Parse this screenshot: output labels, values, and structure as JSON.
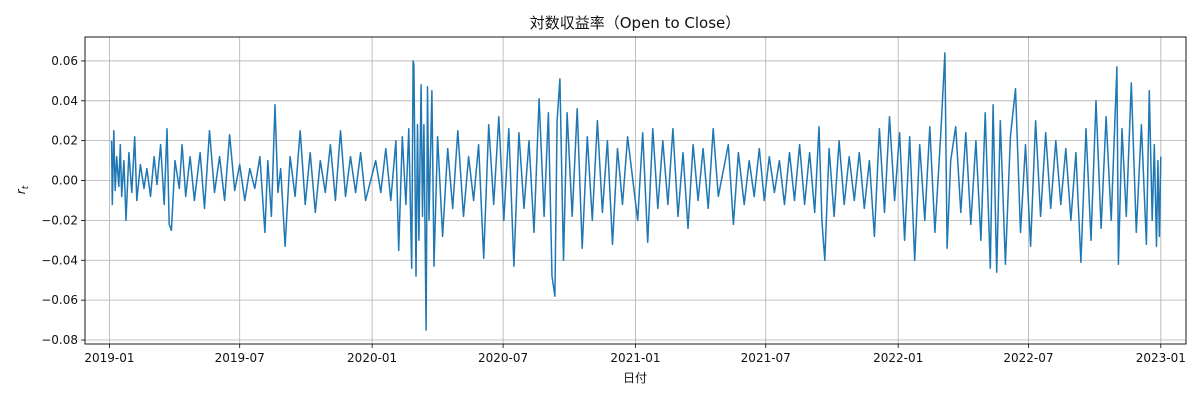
{
  "chart_data": {
    "type": "line",
    "title": "対数収益率（Open to Close）",
    "xlabel": "日付",
    "ylabel_main": "r",
    "ylabel_sub": "t",
    "xlim": [
      "2018-11-28",
      "2023-02-05"
    ],
    "ylim": [
      -0.082,
      0.072
    ],
    "x_ticks": [
      {
        "date": "2019-01-01",
        "label": "2019-01"
      },
      {
        "date": "2019-07-01",
        "label": "2019-07"
      },
      {
        "date": "2020-01-01",
        "label": "2020-01"
      },
      {
        "date": "2020-07-01",
        "label": "2020-07"
      },
      {
        "date": "2021-01-01",
        "label": "2021-01"
      },
      {
        "date": "2021-07-01",
        "label": "2021-07"
      },
      {
        "date": "2022-01-01",
        "label": "2022-01"
      },
      {
        "date": "2022-07-01",
        "label": "2022-07"
      },
      {
        "date": "2023-01-01",
        "label": "2023-01"
      }
    ],
    "y_ticks": [
      {
        "value": -0.08,
        "label": "−0.08"
      },
      {
        "value": -0.06,
        "label": "−0.06"
      },
      {
        "value": -0.04,
        "label": "−0.04"
      },
      {
        "value": -0.02,
        "label": "−0.02"
      },
      {
        "value": 0.0,
        "label": "0.00"
      },
      {
        "value": 0.02,
        "label": "0.02"
      },
      {
        "value": 0.04,
        "label": "0.04"
      },
      {
        "value": 0.06,
        "label": "0.06"
      }
    ],
    "grid": true,
    "series": [
      {
        "color": "#1f77b4",
        "points": [
          [
            "2019-01-04",
            0.02
          ],
          [
            "2019-01-05",
            -0.012
          ],
          [
            "2019-01-07",
            0.025
          ],
          [
            "2019-01-09",
            -0.005
          ],
          [
            "2019-01-11",
            0.012
          ],
          [
            "2019-01-14",
            -0.003
          ],
          [
            "2019-01-16",
            0.018
          ],
          [
            "2019-01-18",
            -0.008
          ],
          [
            "2019-01-21",
            0.01
          ],
          [
            "2019-01-24",
            -0.02
          ],
          [
            "2019-01-28",
            0.014
          ],
          [
            "2019-02-01",
            -0.006
          ],
          [
            "2019-02-05",
            0.022
          ],
          [
            "2019-02-08",
            -0.01
          ],
          [
            "2019-02-13",
            0.008
          ],
          [
            "2019-02-18",
            -0.004
          ],
          [
            "2019-02-22",
            0.006
          ],
          [
            "2019-02-27",
            -0.008
          ],
          [
            "2019-03-04",
            0.012
          ],
          [
            "2019-03-08",
            -0.002
          ],
          [
            "2019-03-13",
            0.018
          ],
          [
            "2019-03-18",
            -0.012
          ],
          [
            "2019-03-22",
            0.026
          ],
          [
            "2019-03-25",
            -0.022
          ],
          [
            "2019-03-28",
            -0.025
          ],
          [
            "2019-04-02",
            0.01
          ],
          [
            "2019-04-08",
            -0.004
          ],
          [
            "2019-04-12",
            0.018
          ],
          [
            "2019-04-17",
            -0.008
          ],
          [
            "2019-04-23",
            0.012
          ],
          [
            "2019-04-29",
            -0.01
          ],
          [
            "2019-05-07",
            0.014
          ],
          [
            "2019-05-13",
            -0.014
          ],
          [
            "2019-05-20",
            0.025
          ],
          [
            "2019-05-27",
            -0.006
          ],
          [
            "2019-06-03",
            0.012
          ],
          [
            "2019-06-10",
            -0.01
          ],
          [
            "2019-06-17",
            0.023
          ],
          [
            "2019-06-24",
            -0.005
          ],
          [
            "2019-07-01",
            0.008
          ],
          [
            "2019-07-08",
            -0.01
          ],
          [
            "2019-07-15",
            0.006
          ],
          [
            "2019-07-22",
            -0.004
          ],
          [
            "2019-07-29",
            0.012
          ],
          [
            "2019-08-05",
            -0.026
          ],
          [
            "2019-08-09",
            0.01
          ],
          [
            "2019-08-14",
            -0.018
          ],
          [
            "2019-08-19",
            0.038
          ],
          [
            "2019-08-23",
            -0.006
          ],
          [
            "2019-08-27",
            0.006
          ],
          [
            "2019-09-02",
            -0.033
          ],
          [
            "2019-09-09",
            0.012
          ],
          [
            "2019-09-16",
            -0.008
          ],
          [
            "2019-09-23",
            0.025
          ],
          [
            "2019-09-30",
            -0.012
          ],
          [
            "2019-10-07",
            0.014
          ],
          [
            "2019-10-14",
            -0.016
          ],
          [
            "2019-10-21",
            0.01
          ],
          [
            "2019-10-28",
            -0.006
          ],
          [
            "2019-11-04",
            0.018
          ],
          [
            "2019-11-11",
            -0.01
          ],
          [
            "2019-11-18",
            0.025
          ],
          [
            "2019-11-25",
            -0.008
          ],
          [
            "2019-12-02",
            0.012
          ],
          [
            "2019-12-09",
            -0.006
          ],
          [
            "2019-12-16",
            0.014
          ],
          [
            "2019-12-23",
            -0.01
          ],
          [
            "2020-01-06",
            0.01
          ],
          [
            "2020-01-13",
            -0.006
          ],
          [
            "2020-01-20",
            0.016
          ],
          [
            "2020-01-27",
            -0.01
          ],
          [
            "2020-02-03",
            0.02
          ],
          [
            "2020-02-07",
            -0.035
          ],
          [
            "2020-02-12",
            0.022
          ],
          [
            "2020-02-17",
            -0.012
          ],
          [
            "2020-02-21",
            0.026
          ],
          [
            "2020-02-25",
            -0.044
          ],
          [
            "2020-02-27",
            0.06
          ],
          [
            "2020-02-28",
            0.058
          ],
          [
            "2020-03-02",
            -0.048
          ],
          [
            "2020-03-04",
            0.028
          ],
          [
            "2020-03-06",
            -0.03
          ],
          [
            "2020-03-09",
            0.048
          ],
          [
            "2020-03-11",
            -0.018
          ],
          [
            "2020-03-13",
            0.028
          ],
          [
            "2020-03-16",
            -0.075
          ],
          [
            "2020-03-18",
            0.047
          ],
          [
            "2020-03-20",
            -0.02
          ],
          [
            "2020-03-24",
            0.045
          ],
          [
            "2020-03-27",
            -0.043
          ],
          [
            "2020-04-01",
            0.022
          ],
          [
            "2020-04-08",
            -0.028
          ],
          [
            "2020-04-15",
            0.016
          ],
          [
            "2020-04-22",
            -0.014
          ],
          [
            "2020-04-29",
            0.025
          ],
          [
            "2020-05-07",
            -0.018
          ],
          [
            "2020-05-14",
            0.012
          ],
          [
            "2020-05-21",
            -0.01
          ],
          [
            "2020-05-28",
            0.018
          ],
          [
            "2020-06-04",
            -0.039
          ],
          [
            "2020-06-11",
            0.028
          ],
          [
            "2020-06-18",
            -0.012
          ],
          [
            "2020-06-25",
            0.032
          ],
          [
            "2020-07-02",
            -0.02
          ],
          [
            "2020-07-09",
            0.026
          ],
          [
            "2020-07-16",
            -0.043
          ],
          [
            "2020-07-23",
            0.024
          ],
          [
            "2020-07-30",
            -0.014
          ],
          [
            "2020-08-06",
            0.02
          ],
          [
            "2020-08-13",
            -0.026
          ],
          [
            "2020-08-20",
            0.041
          ],
          [
            "2020-08-27",
            -0.018
          ],
          [
            "2020-09-02",
            0.034
          ],
          [
            "2020-09-07",
            -0.048
          ],
          [
            "2020-09-11",
            -0.058
          ],
          [
            "2020-09-14",
            0.03
          ],
          [
            "2020-09-18",
            0.051
          ],
          [
            "2020-09-23",
            -0.04
          ],
          [
            "2020-09-28",
            0.034
          ],
          [
            "2020-10-05",
            -0.018
          ],
          [
            "2020-10-12",
            0.036
          ],
          [
            "2020-10-19",
            -0.034
          ],
          [
            "2020-10-26",
            0.022
          ],
          [
            "2020-11-02",
            -0.02
          ],
          [
            "2020-11-09",
            0.03
          ],
          [
            "2020-11-16",
            -0.016
          ],
          [
            "2020-11-23",
            0.02
          ],
          [
            "2020-11-30",
            -0.032
          ],
          [
            "2020-12-07",
            0.016
          ],
          [
            "2020-12-14",
            -0.012
          ],
          [
            "2020-12-21",
            0.022
          ],
          [
            "2021-01-04",
            -0.02
          ],
          [
            "2021-01-11",
            0.024
          ],
          [
            "2021-01-18",
            -0.031
          ],
          [
            "2021-01-25",
            0.026
          ],
          [
            "2021-02-01",
            -0.014
          ],
          [
            "2021-02-08",
            0.02
          ],
          [
            "2021-02-15",
            -0.012
          ],
          [
            "2021-02-22",
            0.026
          ],
          [
            "2021-03-01",
            -0.018
          ],
          [
            "2021-03-08",
            0.014
          ],
          [
            "2021-03-15",
            -0.024
          ],
          [
            "2021-03-22",
            0.018
          ],
          [
            "2021-03-29",
            -0.01
          ],
          [
            "2021-04-05",
            0.016
          ],
          [
            "2021-04-12",
            -0.014
          ],
          [
            "2021-04-19",
            0.026
          ],
          [
            "2021-04-26",
            -0.008
          ],
          [
            "2021-05-10",
            0.018
          ],
          [
            "2021-05-17",
            -0.022
          ],
          [
            "2021-05-24",
            0.014
          ],
          [
            "2021-06-01",
            -0.012
          ],
          [
            "2021-06-08",
            0.01
          ],
          [
            "2021-06-15",
            -0.008
          ],
          [
            "2021-06-22",
            0.016
          ],
          [
            "2021-06-29",
            -0.01
          ],
          [
            "2021-07-06",
            0.012
          ],
          [
            "2021-07-13",
            -0.006
          ],
          [
            "2021-07-20",
            0.01
          ],
          [
            "2021-07-27",
            -0.012
          ],
          [
            "2021-08-03",
            0.014
          ],
          [
            "2021-08-10",
            -0.01
          ],
          [
            "2021-08-17",
            0.018
          ],
          [
            "2021-08-24",
            -0.012
          ],
          [
            "2021-08-31",
            0.014
          ],
          [
            "2021-09-07",
            -0.016
          ],
          [
            "2021-09-13",
            0.027
          ],
          [
            "2021-09-17",
            -0.02
          ],
          [
            "2021-09-21",
            -0.04
          ],
          [
            "2021-09-27",
            0.016
          ],
          [
            "2021-10-04",
            -0.018
          ],
          [
            "2021-10-11",
            0.02
          ],
          [
            "2021-10-18",
            -0.012
          ],
          [
            "2021-10-25",
            0.012
          ],
          [
            "2021-11-01",
            -0.01
          ],
          [
            "2021-11-08",
            0.014
          ],
          [
            "2021-11-15",
            -0.014
          ],
          [
            "2021-11-22",
            0.01
          ],
          [
            "2021-11-29",
            -0.028
          ],
          [
            "2021-12-06",
            0.026
          ],
          [
            "2021-12-13",
            -0.016
          ],
          [
            "2021-12-20",
            0.032
          ],
          [
            "2021-12-27",
            -0.01
          ],
          [
            "2022-01-03",
            0.024
          ],
          [
            "2022-01-10",
            -0.03
          ],
          [
            "2022-01-17",
            0.022
          ],
          [
            "2022-01-24",
            -0.04
          ],
          [
            "2022-01-31",
            0.018
          ],
          [
            "2022-02-07",
            -0.02
          ],
          [
            "2022-02-14",
            0.027
          ],
          [
            "2022-02-21",
            -0.026
          ],
          [
            "2022-03-01",
            0.022
          ],
          [
            "2022-03-07",
            0.064
          ],
          [
            "2022-03-10",
            -0.034
          ],
          [
            "2022-03-15",
            0.01
          ],
          [
            "2022-03-22",
            0.027
          ],
          [
            "2022-03-29",
            -0.016
          ],
          [
            "2022-04-05",
            0.024
          ],
          [
            "2022-04-12",
            -0.022
          ],
          [
            "2022-04-19",
            0.02
          ],
          [
            "2022-04-26",
            -0.03
          ],
          [
            "2022-05-02",
            0.034
          ],
          [
            "2022-05-09",
            -0.044
          ],
          [
            "2022-05-13",
            0.038
          ],
          [
            "2022-05-18",
            -0.046
          ],
          [
            "2022-05-23",
            0.03
          ],
          [
            "2022-05-30",
            -0.042
          ],
          [
            "2022-06-06",
            0.022
          ],
          [
            "2022-06-13",
            0.046
          ],
          [
            "2022-06-20",
            -0.026
          ],
          [
            "2022-06-27",
            0.018
          ],
          [
            "2022-07-04",
            -0.033
          ],
          [
            "2022-07-11",
            0.03
          ],
          [
            "2022-07-18",
            -0.018
          ],
          [
            "2022-07-25",
            0.024
          ],
          [
            "2022-08-01",
            -0.014
          ],
          [
            "2022-08-08",
            0.02
          ],
          [
            "2022-08-15",
            -0.012
          ],
          [
            "2022-08-22",
            0.016
          ],
          [
            "2022-08-29",
            -0.02
          ],
          [
            "2022-09-05",
            0.014
          ],
          [
            "2022-09-12",
            -0.041
          ],
          [
            "2022-09-19",
            0.026
          ],
          [
            "2022-09-26",
            -0.03
          ],
          [
            "2022-10-03",
            0.04
          ],
          [
            "2022-10-10",
            -0.024
          ],
          [
            "2022-10-17",
            0.032
          ],
          [
            "2022-10-24",
            -0.02
          ],
          [
            "2022-11-01",
            0.057
          ],
          [
            "2022-11-03",
            -0.042
          ],
          [
            "2022-11-08",
            0.026
          ],
          [
            "2022-11-14",
            -0.018
          ],
          [
            "2022-11-21",
            0.049
          ],
          [
            "2022-11-28",
            -0.026
          ],
          [
            "2022-12-05",
            0.028
          ],
          [
            "2022-12-12",
            -0.032
          ],
          [
            "2022-12-16",
            0.045
          ],
          [
            "2022-12-20",
            -0.02
          ],
          [
            "2022-12-23",
            0.018
          ],
          [
            "2022-12-26",
            -0.033
          ],
          [
            "2022-12-28",
            0.01
          ],
          [
            "2022-12-30",
            -0.028
          ],
          [
            "2023-01-01",
            0.012
          ]
        ]
      }
    ]
  }
}
